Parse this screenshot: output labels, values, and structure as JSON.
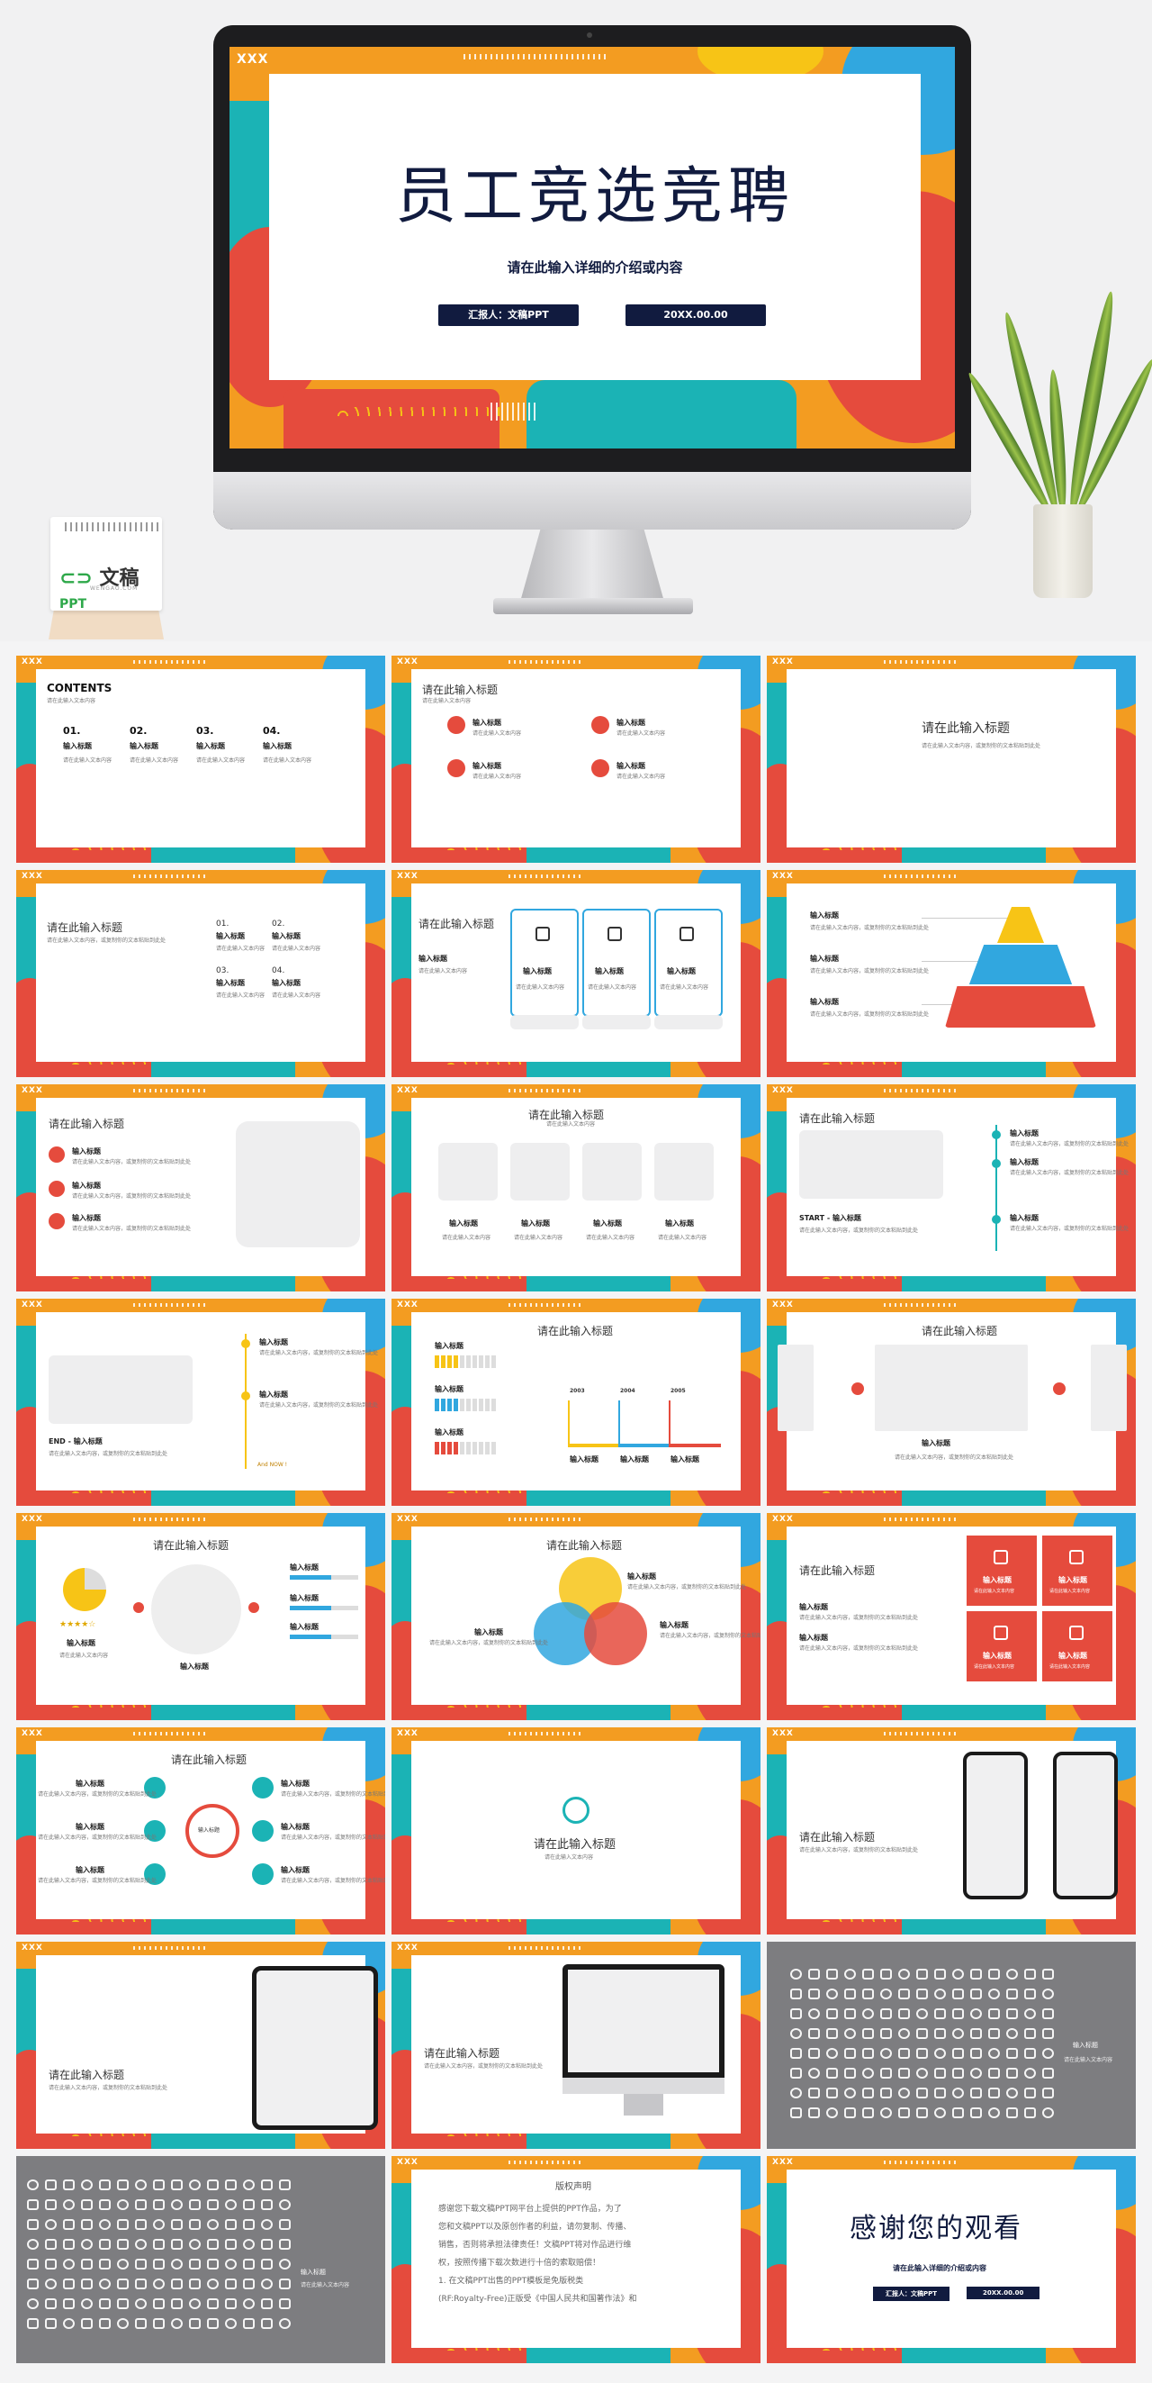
{
  "hero": {
    "title": "员工竞选竞聘",
    "subtitle": "请在此输入详细的介绍或内容",
    "reporter": "汇报人：文稿PPT",
    "date": "20XX.00.00",
    "xxx": "XXX",
    "logo": {
      "text": "文稿",
      "suffix": "PPT",
      "sub": "WENGAO.COM"
    }
  },
  "common": {
    "contents": "CONTENTS",
    "input_title": "请在此输入标题",
    "input_label": "输入标题",
    "small": "请在此输入文本内容",
    "long": "请在此输入文本内容，或复制你的文本粘贴到此处",
    "start": "START - 输入标题",
    "end": "END - 输入标题",
    "and_now": "And NOW !",
    "nums": [
      "01.",
      "02.",
      "03.",
      "04."
    ],
    "years": [
      "2003",
      "2004",
      "2005"
    ]
  },
  "copyright": {
    "title": "版权声明",
    "lines": [
      "感谢您下载文稿PPT网平台上提供的PPT作品，为了",
      "您和文稿PPT以及原创作者的利益，请勿复制、传播、",
      "销售，否则将承担法律责任！文稿PPT将对作品进行维",
      "权，按照传播下载次数进行十倍的索取赔偿！",
      "1. 在文稿PPT出售的PPT模板是免版税类",
      "(RF:Royalty-Free)正版受《中国人民共和国著作法》和"
    ]
  },
  "thanks": {
    "title": "感谢您的观看",
    "subtitle": "请在此输入详细的介绍或内容",
    "reporter": "汇报人：文稿PPT",
    "date": "20XX.00.00"
  },
  "colors": {
    "red": "#e54b3d",
    "teal": "#1bb3b5",
    "yellow": "#f7c416",
    "blue": "#31a7df",
    "navy": "#111b3f",
    "gray": "#7d7d80"
  }
}
